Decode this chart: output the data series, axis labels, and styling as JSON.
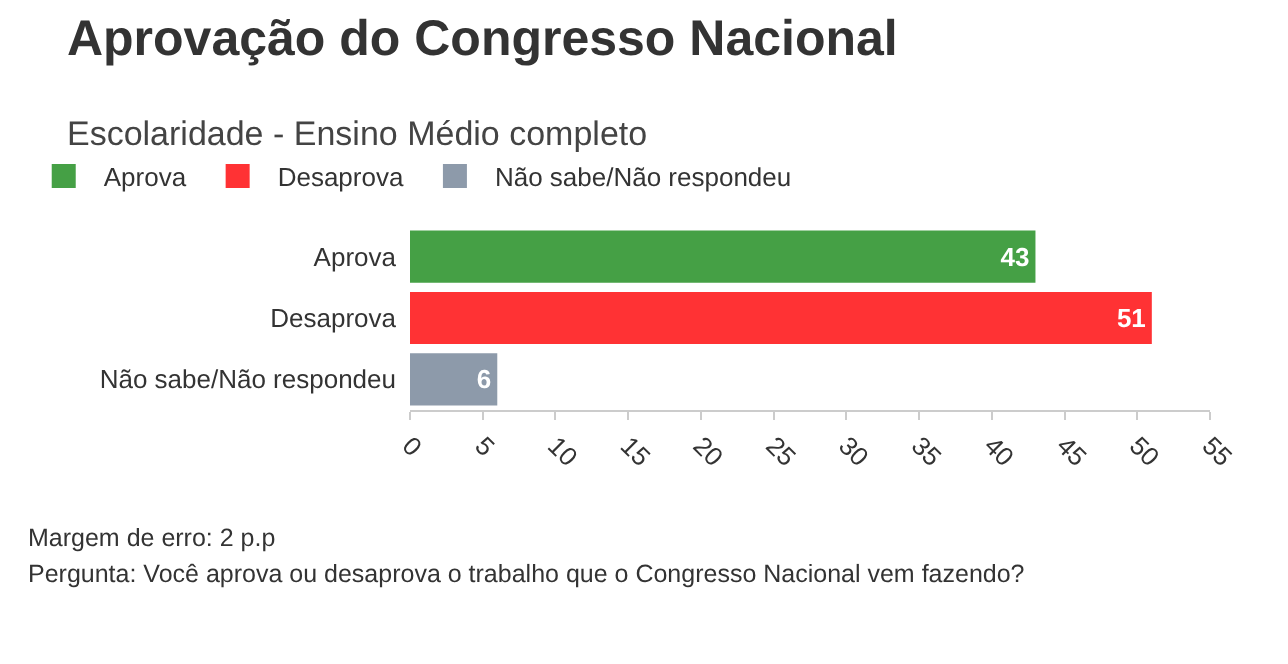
{
  "chart_data": {
    "type": "bar",
    "orientation": "horizontal",
    "title": "Aprovação do Congresso Nacional",
    "subtitle": "Escolaridade - Ensino Médio completo",
    "categories": [
      "Aprova",
      "Desaprova",
      "Não sabe/Não respondeu"
    ],
    "series": [
      {
        "name": "Aprova",
        "color": "#45a045",
        "values": [
          43,
          null,
          null
        ]
      },
      {
        "name": "Desaprova",
        "color": "#ff3234",
        "values": [
          null,
          51,
          null
        ]
      },
      {
        "name": "Não sabe/Não respondeu",
        "color": "#8d9aaa",
        "values": [
          null,
          null,
          6
        ]
      }
    ],
    "xlim": [
      0,
      55
    ],
    "xticks": [
      0,
      5,
      10,
      15,
      20,
      25,
      30,
      35,
      40,
      45,
      50,
      55
    ],
    "data_labels": true,
    "grid": false,
    "legend": "top left",
    "annotations": [
      "Margem de erro: 2 p.p",
      "Pergunta: Você aprova ou desaprova o trabalho que o Congresso Nacional vem fazendo?"
    ]
  }
}
